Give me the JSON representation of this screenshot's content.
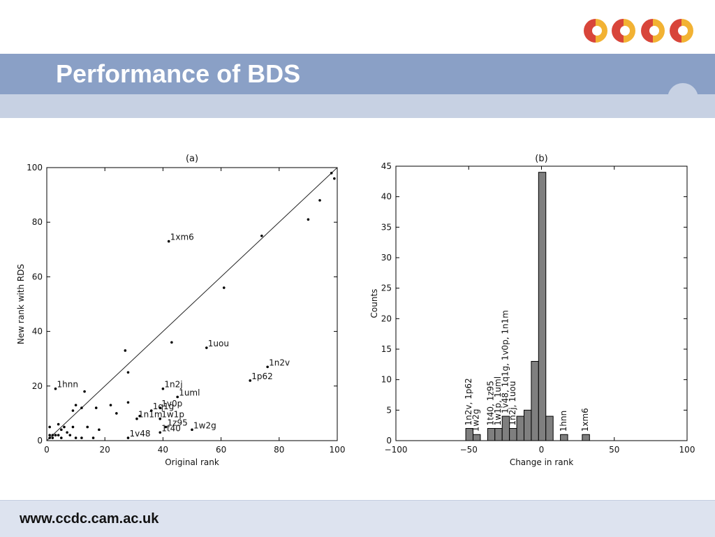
{
  "slide": {
    "title": "Performance of BDS",
    "footer_url": "www.ccdc.cam.ac.uk",
    "logo_icon": "ccdc-logo-icon"
  },
  "colors": {
    "title_band": "#8aa0c6",
    "sub_band": "#c7d1e3",
    "logo_red": "#d8453a",
    "logo_orange": "#f2b233",
    "bar_fill": "#7f7f7f"
  },
  "chart_data": [
    {
      "type": "scatter",
      "title": "(a)",
      "xlabel": "Original rank",
      "ylabel": "New rank with RDS",
      "xlim": [
        0,
        100
      ],
      "ylim": [
        0,
        100
      ],
      "xticks": [
        "0",
        "20",
        "40",
        "60",
        "80",
        "100"
      ],
      "yticks": [
        "0",
        "20",
        "40",
        "60",
        "80",
        "100"
      ],
      "diagonal_line": true,
      "grid": false,
      "points": [
        [
          98,
          98
        ],
        [
          99,
          96
        ],
        [
          94,
          88
        ],
        [
          90,
          81
        ],
        [
          74,
          75
        ],
        [
          61,
          56
        ],
        [
          27,
          33
        ],
        [
          43,
          36
        ],
        [
          28,
          25
        ],
        [
          13,
          18
        ],
        [
          28,
          14
        ],
        [
          22,
          13
        ],
        [
          10,
          13
        ],
        [
          17,
          12
        ],
        [
          12,
          12
        ],
        [
          9,
          11
        ],
        [
          24,
          10
        ],
        [
          32,
          9
        ],
        [
          14,
          5
        ],
        [
          18,
          4
        ],
        [
          9,
          5
        ],
        [
          1,
          5
        ],
        [
          4,
          6
        ],
        [
          6,
          5
        ],
        [
          5,
          4
        ],
        [
          7,
          3
        ],
        [
          3,
          2
        ],
        [
          4,
          2
        ],
        [
          2,
          2
        ],
        [
          1,
          1
        ],
        [
          2,
          1
        ],
        [
          3,
          2
        ],
        [
          5,
          1
        ],
        [
          8,
          2
        ],
        [
          10,
          1
        ],
        [
          16,
          1
        ],
        [
          12,
          1
        ],
        [
          1,
          2
        ]
      ],
      "labeled_points": [
        {
          "label": "1xm6",
          "x": 42,
          "y": 73
        },
        {
          "label": "1uou",
          "x": 55,
          "y": 34
        },
        {
          "label": "1n2v",
          "x": 76,
          "y": 27
        },
        {
          "label": "1p62",
          "x": 70,
          "y": 22
        },
        {
          "label": "1hnn",
          "x": 3,
          "y": 19
        },
        {
          "label": "1n2j",
          "x": 40,
          "y": 19
        },
        {
          "label": "1uml",
          "x": 45,
          "y": 16
        },
        {
          "label": "1v0p",
          "x": 39,
          "y": 12
        },
        {
          "label": "1q1g",
          "x": 36,
          "y": 11
        },
        {
          "label": "1w1p",
          "x": 39,
          "y": 8
        },
        {
          "label": "1n1m",
          "x": 31,
          "y": 8
        },
        {
          "label": "1z95",
          "x": 41,
          "y": 5
        },
        {
          "label": "1w2g",
          "x": 50,
          "y": 4
        },
        {
          "label": "1t40",
          "x": 39,
          "y": 3
        },
        {
          "label": "1v48",
          "x": 28,
          "y": 1
        }
      ]
    },
    {
      "type": "bar",
      "title": "(b)",
      "xlabel": "Change in rank",
      "ylabel": "Counts",
      "xlim": [
        -100,
        100
      ],
      "ylim": [
        0,
        45
      ],
      "xticks": [
        "−100",
        "−50",
        "0",
        "50",
        "100"
      ],
      "yticks": [
        "0",
        "5",
        "10",
        "15",
        "20",
        "25",
        "30",
        "35",
        "40",
        "45"
      ],
      "bin_width": 5,
      "bins": [
        {
          "start": -52,
          "count": 2
        },
        {
          "start": -47,
          "count": 1
        },
        {
          "start": -37,
          "count": 2
        },
        {
          "start": -32,
          "count": 2
        },
        {
          "start": -27,
          "count": 4
        },
        {
          "start": -22,
          "count": 2
        },
        {
          "start": -17,
          "count": 4
        },
        {
          "start": -12,
          "count": 5
        },
        {
          "start": -7,
          "count": 13
        },
        {
          "start": -2,
          "count": 44
        },
        {
          "start": 3,
          "count": 4
        },
        {
          "start": 13,
          "count": 1
        },
        {
          "start": 28,
          "count": 1
        }
      ],
      "annotations": [
        {
          "label": "1n2v, 1p62",
          "x": -50,
          "count": 2
        },
        {
          "label": "1w2g",
          "x": -45,
          "count": 1
        },
        {
          "label": "1t40, 1z95",
          "x": -35,
          "count": 2
        },
        {
          "label": "1w1p, 1uml",
          "x": -30,
          "count": 2
        },
        {
          "label": "1v48, 1q1g, 1v0p, 1n1m",
          "x": -25,
          "count": 4
        },
        {
          "label": "1n2j, 1uou",
          "x": -20,
          "count": 2
        },
        {
          "label": "1hnn",
          "x": 15,
          "count": 1
        },
        {
          "label": "1xm6",
          "x": 30,
          "count": 1
        }
      ]
    }
  ]
}
